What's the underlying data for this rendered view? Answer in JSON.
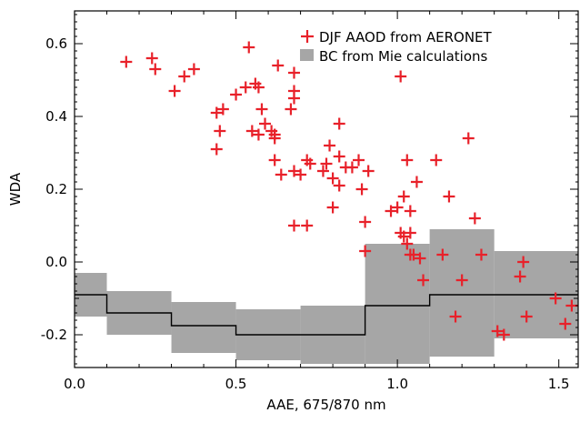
{
  "chart_data": {
    "type": "scatter",
    "xlabel": "AAE, 675/870 nm",
    "ylabel": "WDA",
    "xlim": [
      0.0,
      1.56
    ],
    "ylim": [
      -0.29,
      0.69
    ],
    "xticks": [
      0.0,
      0.5,
      1.0,
      1.5
    ],
    "xtick_labels": [
      "0.0",
      "0.5",
      "1.0",
      "1.5"
    ],
    "yticks": [
      -0.2,
      0.0,
      0.2,
      0.4,
      0.6
    ],
    "ytick_labels": [
      "-0.2",
      "0.0",
      "0.2",
      "0.4",
      "0.6"
    ],
    "grid": false,
    "legend_position": "top-right",
    "colors": {
      "points": "#e8212a",
      "band": "#a6a6a6",
      "line": "#000000"
    },
    "series": [
      {
        "name": "DJF AAOD from AERONET",
        "kind": "scatter",
        "marker": "plus",
        "points": [
          [
            0.16,
            0.55
          ],
          [
            0.24,
            0.56
          ],
          [
            0.25,
            0.53
          ],
          [
            0.31,
            0.47
          ],
          [
            0.34,
            0.51
          ],
          [
            0.37,
            0.53
          ],
          [
            0.44,
            0.41
          ],
          [
            0.46,
            0.42
          ],
          [
            0.45,
            0.36
          ],
          [
            0.44,
            0.31
          ],
          [
            0.5,
            0.46
          ],
          [
            0.54,
            0.59
          ],
          [
            0.53,
            0.48
          ],
          [
            0.56,
            0.49
          ],
          [
            0.55,
            0.36
          ],
          [
            0.57,
            0.35
          ],
          [
            0.57,
            0.48
          ],
          [
            0.58,
            0.42
          ],
          [
            0.59,
            0.38
          ],
          [
            0.61,
            0.36
          ],
          [
            0.62,
            0.34
          ],
          [
            0.62,
            0.35
          ],
          [
            0.63,
            0.54
          ],
          [
            0.62,
            0.28
          ],
          [
            0.64,
            0.24
          ],
          [
            0.67,
            0.42
          ],
          [
            0.68,
            0.47
          ],
          [
            0.68,
            0.45
          ],
          [
            0.68,
            0.52
          ],
          [
            0.68,
            0.25
          ],
          [
            0.7,
            0.24
          ],
          [
            0.68,
            0.1
          ],
          [
            0.72,
            0.1
          ],
          [
            0.72,
            0.28
          ],
          [
            0.73,
            0.27
          ],
          [
            0.77,
            0.25
          ],
          [
            0.78,
            0.27
          ],
          [
            0.79,
            0.32
          ],
          [
            0.8,
            0.23
          ],
          [
            0.8,
            0.15
          ],
          [
            0.82,
            0.38
          ],
          [
            0.82,
            0.29
          ],
          [
            0.82,
            0.21
          ],
          [
            0.84,
            0.26
          ],
          [
            0.86,
            0.26
          ],
          [
            0.88,
            0.28
          ],
          [
            0.89,
            0.2
          ],
          [
            0.9,
            0.11
          ],
          [
            0.9,
            0.03
          ],
          [
            0.91,
            0.25
          ],
          [
            0.98,
            0.14
          ],
          [
            1.0,
            0.15
          ],
          [
            1.01,
            0.51
          ],
          [
            1.01,
            0.08
          ],
          [
            1.02,
            0.07
          ],
          [
            1.02,
            0.18
          ],
          [
            1.03,
            0.28
          ],
          [
            1.03,
            0.05
          ],
          [
            1.04,
            0.08
          ],
          [
            1.04,
            0.14
          ],
          [
            1.04,
            0.02
          ],
          [
            1.05,
            0.02
          ],
          [
            1.06,
            0.22
          ],
          [
            1.07,
            0.01
          ],
          [
            1.08,
            -0.05
          ],
          [
            1.12,
            0.28
          ],
          [
            1.14,
            0.02
          ],
          [
            1.16,
            0.18
          ],
          [
            1.18,
            -0.15
          ],
          [
            1.2,
            -0.05
          ],
          [
            1.22,
            0.34
          ],
          [
            1.24,
            0.12
          ],
          [
            1.26,
            0.02
          ],
          [
            1.31,
            -0.19
          ],
          [
            1.33,
            -0.2
          ],
          [
            1.38,
            -0.04
          ],
          [
            1.39,
            0.0
          ],
          [
            1.4,
            -0.15
          ],
          [
            1.49,
            -0.1
          ],
          [
            1.52,
            -0.17
          ],
          [
            1.54,
            -0.12
          ]
        ]
      },
      {
        "name": "BC from Mie calculations",
        "kind": "band-step",
        "bins": [
          {
            "x0": 0.0,
            "x1": 0.1,
            "low": -0.15,
            "high": -0.03,
            "mid": -0.09
          },
          {
            "x0": 0.1,
            "x1": 0.3,
            "low": -0.2,
            "high": -0.08,
            "mid": -0.14
          },
          {
            "x0": 0.3,
            "x1": 0.5,
            "low": -0.25,
            "high": -0.11,
            "mid": -0.175
          },
          {
            "x0": 0.5,
            "x1": 0.7,
            "low": -0.27,
            "high": -0.13,
            "mid": -0.2
          },
          {
            "x0": 0.7,
            "x1": 0.9,
            "low": -0.28,
            "high": -0.12,
            "mid": -0.2
          },
          {
            "x0": 0.9,
            "x1": 1.1,
            "low": -0.28,
            "high": 0.05,
            "mid": -0.12
          },
          {
            "x0": 1.1,
            "x1": 1.3,
            "low": -0.26,
            "high": 0.09,
            "mid": -0.09
          },
          {
            "x0": 1.3,
            "x1": 1.56,
            "low": -0.21,
            "high": 0.03,
            "mid": -0.09
          }
        ]
      }
    ]
  }
}
